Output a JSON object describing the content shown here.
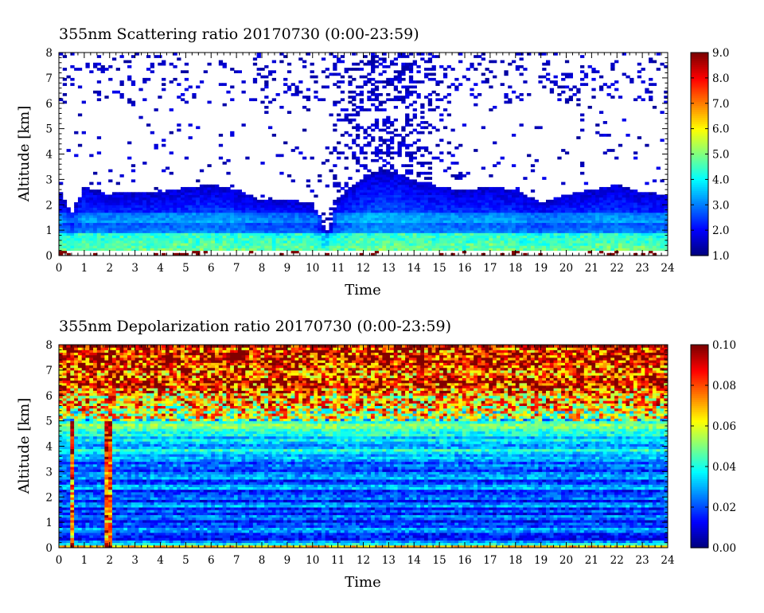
{
  "chart_data": [
    {
      "type": "heatmap",
      "title": "355nm Scattering ratio  20170730 (0:00-23:59)",
      "xlabel": "Time",
      "ylabel": "Altitude [km]",
      "xlim": [
        0,
        24
      ],
      "ylim": [
        0,
        8
      ],
      "x_ticks": [
        "0",
        "1",
        "2",
        "3",
        "4",
        "5",
        "6",
        "7",
        "8",
        "9",
        "10",
        "11",
        "12",
        "13",
        "14",
        "15",
        "16",
        "17",
        "18",
        "19",
        "20",
        "21",
        "22",
        "23",
        "24"
      ],
      "y_ticks": [
        "0",
        "1",
        "2",
        "3",
        "4",
        "5",
        "6",
        "7",
        "8"
      ],
      "colorbar": {
        "range": [
          1.0,
          9.0
        ],
        "ticks": [
          "1.0",
          "2.0",
          "3.0",
          "4.0",
          "5.0",
          "6.0",
          "7.0",
          "8.0",
          "9.0"
        ],
        "colormap": "jet"
      },
      "boundary_layer_top_km": [
        {
          "t": 0.0,
          "h": 2.5
        },
        {
          "t": 0.5,
          "h": 1.7
        },
        {
          "t": 1.0,
          "h": 2.7
        },
        {
          "t": 1.5,
          "h": 2.6
        },
        {
          "t": 2.0,
          "h": 2.4
        },
        {
          "t": 2.3,
          "h": 2.5
        },
        {
          "t": 4.0,
          "h": 2.5
        },
        {
          "t": 5.0,
          "h": 2.7
        },
        {
          "t": 6.0,
          "h": 2.8
        },
        {
          "t": 7.0,
          "h": 2.6
        },
        {
          "t": 8.0,
          "h": 2.2
        },
        {
          "t": 9.0,
          "h": 2.2
        },
        {
          "t": 10.0,
          "h": 2.1
        },
        {
          "t": 10.6,
          "h": 0.9
        },
        {
          "t": 11.0,
          "h": 2.3
        },
        {
          "t": 12.0,
          "h": 3.1
        },
        {
          "t": 13.0,
          "h": 3.4
        },
        {
          "t": 14.0,
          "h": 3.0
        },
        {
          "t": 15.0,
          "h": 2.7
        },
        {
          "t": 16.0,
          "h": 2.6
        },
        {
          "t": 17.0,
          "h": 2.7
        },
        {
          "t": 18.0,
          "h": 2.6
        },
        {
          "t": 19.0,
          "h": 2.1
        },
        {
          "t": 20.0,
          "h": 2.4
        },
        {
          "t": 21.0,
          "h": 2.6
        },
        {
          "t": 22.0,
          "h": 2.8
        },
        {
          "t": 23.0,
          "h": 2.5
        },
        {
          "t": 24.0,
          "h": 2.4
        }
      ]
    },
    {
      "type": "heatmap",
      "title": "355nm Depolarization ratio  20170730 (0:00-23:59)",
      "xlabel": "Time",
      "ylabel": "Altitude [km]",
      "xlim": [
        0,
        24
      ],
      "ylim": [
        0,
        8
      ],
      "x_ticks": [
        "0",
        "1",
        "2",
        "3",
        "4",
        "5",
        "6",
        "7",
        "8",
        "9",
        "10",
        "11",
        "12",
        "13",
        "14",
        "15",
        "16",
        "17",
        "18",
        "19",
        "20",
        "21",
        "22",
        "23",
        "24"
      ],
      "y_ticks": [
        "0",
        "1",
        "2",
        "3",
        "4",
        "5",
        "6",
        "7",
        "8"
      ],
      "colorbar": {
        "range": [
          0.0,
          0.1
        ],
        "ticks": [
          "0.00",
          "0.02",
          "0.04",
          "0.06",
          "0.08",
          "0.10"
        ],
        "colormap": "jet"
      },
      "depol_profile": [
        {
          "h": 0.0,
          "v": 0.075
        },
        {
          "h": 0.3,
          "v": 0.02
        },
        {
          "h": 1.0,
          "v": 0.02
        },
        {
          "h": 2.0,
          "v": 0.022
        },
        {
          "h": 3.0,
          "v": 0.024
        },
        {
          "h": 3.8,
          "v": 0.033
        },
        {
          "h": 4.5,
          "v": 0.04
        },
        {
          "h": 5.2,
          "v": 0.055
        },
        {
          "h": 5.8,
          "v": 0.075
        },
        {
          "h": 6.5,
          "v": 0.085
        },
        {
          "h": 8.0,
          "v": 0.09
        }
      ]
    }
  ]
}
